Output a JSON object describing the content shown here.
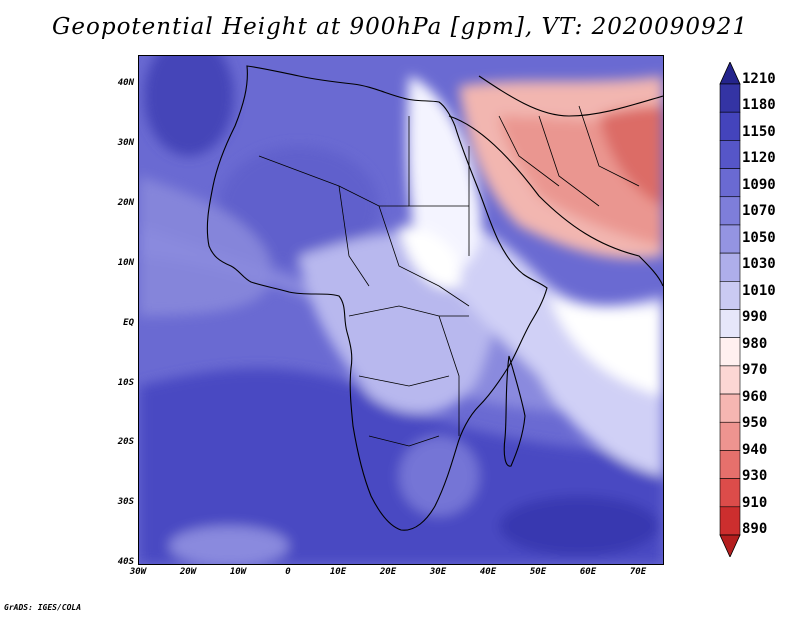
{
  "title": "Geopotential Height at 900hPa [gpm], VT: 2020090921",
  "footer": "GrADS: IGES/COLA",
  "latitude_labels": [
    "40N",
    "30N",
    "20N",
    "10N",
    "EQ",
    "10S",
    "20S",
    "30S",
    "40S"
  ],
  "longitude_labels": [
    "30W",
    "20W",
    "10W",
    "0",
    "10E",
    "20E",
    "30E",
    "40E",
    "50E",
    "60E",
    "70E"
  ],
  "colorbar": {
    "labels": [
      "1210",
      "1180",
      "1150",
      "1120",
      "1090",
      "1070",
      "1050",
      "1030",
      "1010",
      "990",
      "980",
      "970",
      "960",
      "950",
      "940",
      "930",
      "910",
      "890"
    ],
    "colors": [
      "#24248c",
      "#3434a4",
      "#4444bc",
      "#5656c8",
      "#6a6ad2",
      "#7e7eda",
      "#9494e2",
      "#aeaeea",
      "#cacaf2",
      "#e6e6fa",
      "#fff0f0",
      "#fcd6d4",
      "#f6b6b2",
      "#ee9490",
      "#e6706c",
      "#dc4c4a",
      "#cc2e2e",
      "#b41e1e"
    ]
  },
  "palette": {
    "deep": "#4646c4",
    "mid": "#6565d0",
    "light": "#8686dc",
    "pale": "#b4b4ec",
    "paler": "#d6d6f6",
    "white": "#ffffff",
    "pink": "#f4c0ba",
    "salmon": "#ec9c94",
    "red": "#e07670"
  }
}
